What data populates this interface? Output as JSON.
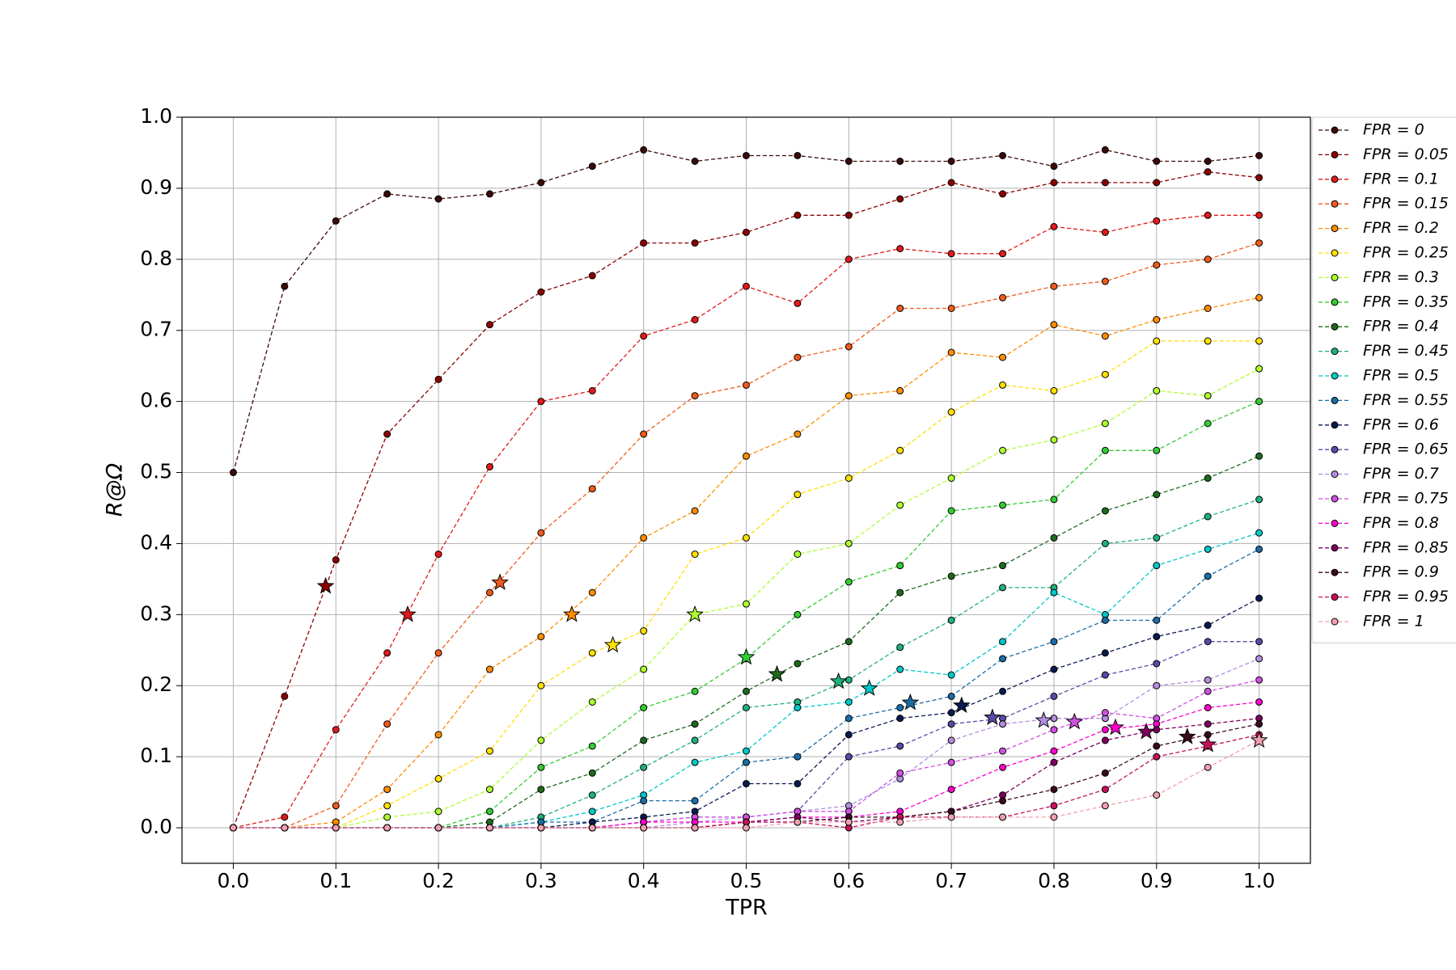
{
  "chart_data": {
    "type": "line",
    "x_label": "TPR",
    "y_label": "R@Ω",
    "x": [
      0,
      0.05,
      0.1,
      0.15,
      0.2,
      0.25,
      0.3,
      0.35,
      0.4,
      0.45,
      0.5,
      0.55,
      0.6,
      0.65,
      0.7,
      0.75,
      0.8,
      0.85,
      0.9,
      0.95,
      1.0
    ],
    "xlim": [
      -0.05,
      1.05
    ],
    "ylim": [
      -0.05,
      1.0
    ],
    "xticks": [
      {
        "value": 0,
        "label": "0.0"
      },
      0.1,
      0.2,
      0.3,
      0.4,
      0.5,
      0.6,
      0.7,
      0.8,
      0.9,
      {
        "value": 1,
        "label": "1.0"
      }
    ],
    "yticks": [
      {
        "value": 0,
        "label": "0.0"
      },
      0.1,
      0.2,
      0.3,
      0.4,
      0.5,
      0.6,
      0.7,
      0.8,
      0.9,
      {
        "value": 1,
        "label": "1.0"
      }
    ],
    "grid": true,
    "legend": "outside-right",
    "series": [
      {
        "name": "FPR = 0",
        "color": "#3b0a0a",
        "values": [
          0.5,
          0.762,
          0.854,
          0.892,
          0.885,
          0.892,
          0.908,
          0.931,
          0.954,
          0.938,
          0.946,
          0.946,
          0.938,
          0.938,
          0.938,
          0.946,
          0.931,
          0.954,
          0.938,
          0.938,
          0.946
        ]
      },
      {
        "name": "FPR = 0.05",
        "color": "#8b0000",
        "values": [
          0,
          0.185,
          0.377,
          0.554,
          0.631,
          0.708,
          0.754,
          0.777,
          0.823,
          0.823,
          0.838,
          0.862,
          0.862,
          0.885,
          0.908,
          0.892,
          0.908,
          0.908,
          0.908,
          0.923,
          0.915
        ],
        "star_x": 0.09,
        "star_y": 0.34
      },
      {
        "name": "FPR = 0.1",
        "color": "#e0191b",
        "values": [
          0,
          0.015,
          0.138,
          0.246,
          0.385,
          0.508,
          0.6,
          0.615,
          0.692,
          0.715,
          0.762,
          0.738,
          0.8,
          0.815,
          0.808,
          0.808,
          0.846,
          0.838,
          0.854,
          0.862,
          0.862
        ],
        "star_x": 0.17,
        "star_y": 0.3
      },
      {
        "name": "FPR = 0.15",
        "color": "#f05a1a",
        "values": [
          0,
          0,
          0.031,
          0.146,
          0.246,
          0.331,
          0.415,
          0.477,
          0.554,
          0.608,
          0.623,
          0.662,
          0.677,
          0.731,
          0.731,
          0.746,
          0.762,
          0.769,
          0.792,
          0.8,
          0.823
        ],
        "star_x": 0.26,
        "star_y": 0.345
      },
      {
        "name": "FPR = 0.2",
        "color": "#ff8c00",
        "values": [
          0,
          0,
          0.008,
          0.054,
          0.131,
          0.223,
          0.269,
          0.331,
          0.408,
          0.446,
          0.523,
          0.554,
          0.608,
          0.615,
          0.669,
          0.662,
          0.708,
          0.692,
          0.715,
          0.731,
          0.746
        ],
        "star_x": 0.33,
        "star_y": 0.3
      },
      {
        "name": "FPR = 0.25",
        "color": "#ffe000",
        "values": [
          0,
          0,
          0,
          0.031,
          0.069,
          0.108,
          0.2,
          0.246,
          0.277,
          0.385,
          0.408,
          0.469,
          0.492,
          0.531,
          0.585,
          0.623,
          0.615,
          0.638,
          0.685,
          0.685,
          0.685
        ],
        "star_x": 0.37,
        "star_y": 0.257
      },
      {
        "name": "FPR = 0.3",
        "color": "#adff2f",
        "values": [
          0,
          0,
          0,
          0.015,
          0.023,
          0.054,
          0.123,
          0.177,
          0.223,
          0.3,
          0.315,
          0.385,
          0.4,
          0.454,
          0.492,
          0.531,
          0.546,
          0.569,
          0.615,
          0.608,
          0.646
        ],
        "star_x": 0.45,
        "star_y": 0.3
      },
      {
        "name": "FPR = 0.35",
        "color": "#32cd32",
        "values": [
          0,
          0,
          0,
          0,
          0,
          0.023,
          0.085,
          0.115,
          0.169,
          0.192,
          0.238,
          0.3,
          0.346,
          0.369,
          0.446,
          0.454,
          0.462,
          0.531,
          0.531,
          0.569,
          0.6
        ],
        "star_x": 0.5,
        "star_y": 0.24
      },
      {
        "name": "FPR = 0.4",
        "color": "#1e6b1e",
        "values": [
          0,
          0,
          0,
          0,
          0,
          0.008,
          0.054,
          0.077,
          0.123,
          0.146,
          0.192,
          0.231,
          0.262,
          0.331,
          0.354,
          0.369,
          0.408,
          0.446,
          0.469,
          0.492,
          0.523
        ],
        "star_x": 0.53,
        "star_y": 0.216
      },
      {
        "name": "FPR = 0.45",
        "color": "#20b27a",
        "values": [
          0,
          0,
          0,
          0,
          0,
          0,
          0.015,
          0.046,
          0.085,
          0.123,
          0.169,
          0.177,
          0.208,
          0.254,
          0.292,
          0.338,
          0.338,
          0.4,
          0.408,
          0.438,
          0.462
        ],
        "star_x": 0.59,
        "star_y": 0.206
      },
      {
        "name": "FPR = 0.5",
        "color": "#00c8c8",
        "values": [
          0,
          0,
          0,
          0,
          0,
          0,
          0.008,
          0.023,
          0.046,
          0.092,
          0.108,
          0.169,
          0.177,
          0.223,
          0.215,
          0.262,
          0.331,
          0.3,
          0.369,
          0.392,
          0.415
        ],
        "star_x": 0.62,
        "star_y": 0.196
      },
      {
        "name": "FPR = 0.55",
        "color": "#1a6ea8",
        "values": [
          0,
          0,
          0,
          0,
          0,
          0,
          0.008,
          0.008,
          0.038,
          0.038,
          0.092,
          0.1,
          0.154,
          0.169,
          0.185,
          0.238,
          0.262,
          0.292,
          0.292,
          0.354,
          0.392
        ],
        "star_x": 0.66,
        "star_y": 0.176
      },
      {
        "name": "FPR = 0.6",
        "color": "#0a1a50",
        "values": [
          0,
          0,
          0,
          0,
          0,
          0,
          0,
          0.008,
          0.015,
          0.023,
          0.062,
          0.062,
          0.131,
          0.154,
          0.162,
          0.192,
          0.223,
          0.246,
          0.269,
          0.285,
          0.323
        ],
        "star_x": 0.71,
        "star_y": 0.172
      },
      {
        "name": "FPR = 0.65",
        "color": "#5a4aa8",
        "values": [
          0,
          0,
          0,
          0,
          0,
          0,
          0,
          0,
          0.008,
          0.015,
          0.015,
          0.023,
          0.1,
          0.115,
          0.146,
          0.154,
          0.185,
          0.215,
          0.231,
          0.262,
          0.262
        ],
        "star_x": 0.74,
        "star_y": 0.155
      },
      {
        "name": "FPR = 0.7",
        "color": "#b48ee0",
        "values": [
          0,
          0,
          0,
          0,
          0,
          0,
          0,
          0,
          0,
          0.008,
          0.015,
          0.023,
          0.031,
          0.069,
          0.123,
          0.146,
          0.154,
          0.154,
          0.2,
          0.208,
          0.238
        ],
        "star_x": 0.79,
        "star_y": 0.151
      },
      {
        "name": "FPR = 0.75",
        "color": "#d050e0",
        "values": [
          0,
          0,
          0,
          0,
          0,
          0,
          0,
          0,
          0.008,
          0.015,
          0.015,
          0.023,
          0.023,
          0.077,
          0.092,
          0.108,
          0.138,
          0.162,
          0.154,
          0.192,
          0.208
        ],
        "star_x": 0.82,
        "star_y": 0.149
      },
      {
        "name": "FPR = 0.8",
        "color": "#ff00cc",
        "values": [
          0,
          0,
          0,
          0,
          0,
          0,
          0,
          0,
          0.008,
          0.008,
          0.008,
          0.015,
          0.015,
          0.023,
          0.054,
          0.085,
          0.108,
          0.138,
          0.146,
          0.169,
          0.177
        ],
        "star_x": 0.86,
        "star_y": 0.141
      },
      {
        "name": "FPR = 0.85",
        "color": "#800060",
        "values": [
          0,
          0,
          0,
          0,
          0,
          0,
          0,
          0,
          0,
          0,
          0.008,
          0.015,
          0.008,
          0.015,
          0.023,
          0.046,
          0.092,
          0.123,
          0.138,
          0.146,
          0.154
        ],
        "star_x": 0.89,
        "star_y": 0.135
      },
      {
        "name": "FPR = 0.9",
        "color": "#3a0a20",
        "values": [
          0,
          0,
          0,
          0,
          0,
          0,
          0,
          0,
          0,
          0,
          0.008,
          0.008,
          0.015,
          0.015,
          0.023,
          0.038,
          0.054,
          0.077,
          0.115,
          0.131,
          0.146
        ],
        "star_x": 0.93,
        "star_y": 0.128
      },
      {
        "name": "FPR = 0.95",
        "color": "#c8105a",
        "values": [
          0,
          0,
          0,
          0,
          0,
          0,
          0,
          0,
          0,
          0,
          0.008,
          0.008,
          0,
          0.015,
          0.015,
          0.015,
          0.031,
          0.054,
          0.1,
          0.115,
          0.131
        ],
        "star_x": 0.95,
        "star_y": 0.117
      },
      {
        "name": "FPR = 1",
        "color": "#f0a0b0",
        "values": [
          0,
          0,
          0,
          0,
          0,
          0,
          0,
          0,
          0,
          0,
          0,
          0.008,
          0.008,
          0.008,
          0.015,
          0.015,
          0.015,
          0.031,
          0.046,
          0.085,
          0.123
        ],
        "star_x": 1.0,
        "star_y": 0.123
      }
    ]
  }
}
